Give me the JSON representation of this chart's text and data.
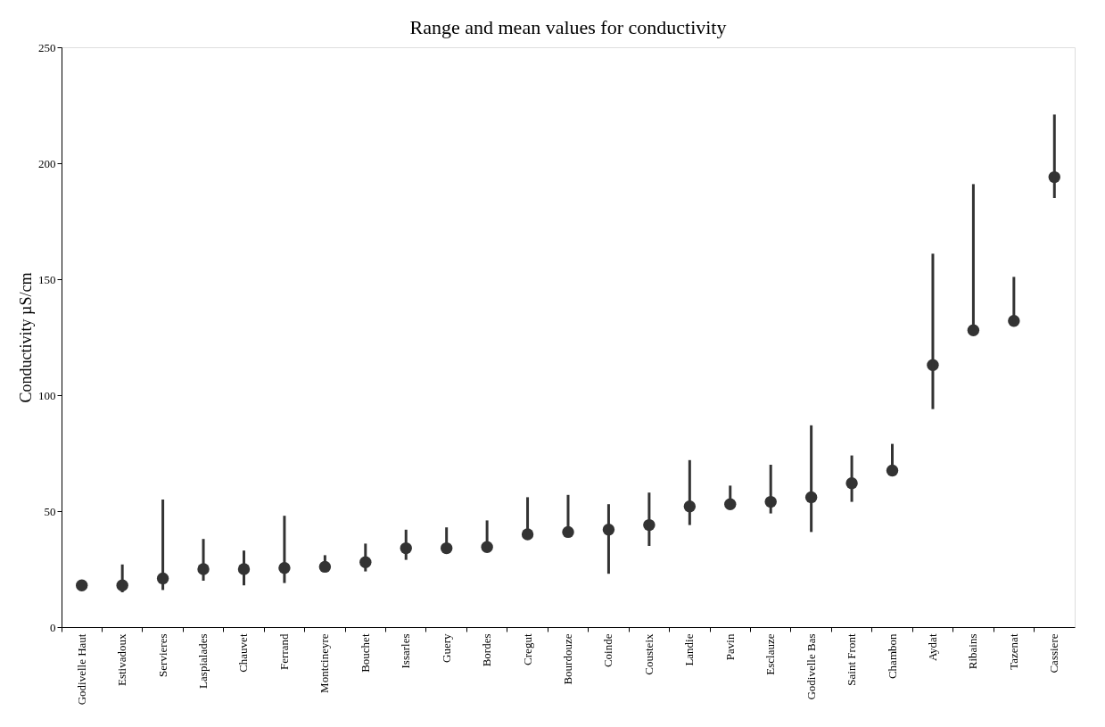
{
  "chart_data": {
    "type": "scatter",
    "title": "Range and mean values for conductivity",
    "ylabel": "Conductivity µS/cm",
    "categories": [
      "Godivelle Haut",
      "Estivadoux",
      "Servieres",
      "Laspialades",
      "Chauvet",
      "Ferrand",
      "Montcineyre",
      "Bouchet",
      "Issarles",
      "Guery",
      "Bordes",
      "Cregut",
      "Bourdouze",
      "Coinde",
      "Cousteix",
      "Landie",
      "Pavin",
      "Esclauze",
      "Godivelle Bas",
      "Saint Front",
      "Chambon",
      "Aydat",
      "Ribains",
      "Tazenat",
      "Cassiere"
    ],
    "values": [
      18,
      18,
      21,
      25,
      25,
      25.5,
      26,
      28,
      34,
      34,
      34.5,
      40,
      41,
      42,
      44,
      52,
      53,
      54,
      56,
      62,
      67.5,
      113,
      128,
      132,
      194
    ],
    "errors": [
      null,
      [
        15,
        27
      ],
      [
        16,
        55
      ],
      [
        20,
        38
      ],
      [
        18,
        33
      ],
      [
        19,
        48
      ],
      [
        24,
        31
      ],
      [
        24,
        36
      ],
      [
        29,
        42
      ],
      [
        33,
        43
      ],
      [
        33,
        46
      ],
      [
        38,
        56
      ],
      [
        41,
        57
      ],
      [
        23,
        53
      ],
      [
        35,
        58
      ],
      [
        44,
        72
      ],
      [
        51,
        61
      ],
      [
        49,
        70
      ],
      [
        41,
        87
      ],
      [
        54,
        74
      ],
      [
        66,
        79
      ],
      [
        94,
        161
      ],
      [
        128,
        191
      ],
      [
        131,
        151
      ],
      [
        185,
        221
      ]
    ],
    "color": "#333333",
    "marker": "circle",
    "ylim": [
      0,
      250
    ],
    "yticks": [
      0,
      50,
      100,
      150,
      200,
      250
    ],
    "grid": false
  }
}
